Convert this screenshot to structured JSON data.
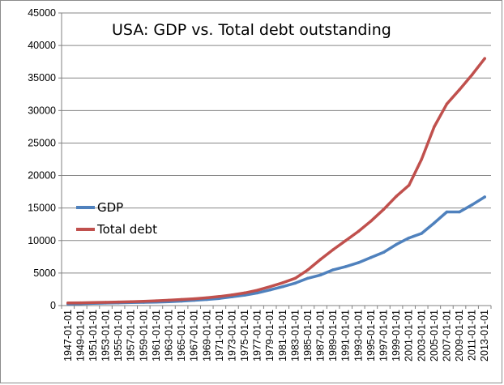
{
  "chart_data": {
    "type": "line",
    "title": "USA: GDP vs. Total debt outstanding",
    "xlabel": "",
    "ylabel": "",
    "ylim": [
      0,
      45000
    ],
    "yticks": [
      "0",
      "5000",
      "10000",
      "15000",
      "20000",
      "25000",
      "30000",
      "35000",
      "40000",
      "45000"
    ],
    "grid": "horizontal",
    "legend_position": "middle-left",
    "x": [
      "1947-01-01",
      "1949-01-01",
      "1951-01-01",
      "1953-01-01",
      "1955-01-01",
      "1957-01-01",
      "1959-01-01",
      "1961-01-01",
      "1963-01-01",
      "1965-01-01",
      "1967-01-01",
      "1969-01-01",
      "1971-01-01",
      "1973-01-01",
      "1975-01-01",
      "1977-01-01",
      "1979-01-01",
      "1981-01-01",
      "1983-01-01",
      "1985-01-01",
      "1987-01-01",
      "1989-01-01",
      "1991-01-01",
      "1993-01-01",
      "1995-01-01",
      "1997-01-01",
      "1999-01-01",
      "2001-01-01",
      "2003-01-01",
      "2005-01-01",
      "2007-01-01",
      "2009-01-01",
      "2011-01-01",
      "2013-01-01"
    ],
    "series": [
      {
        "name": "GDP",
        "color": "#4f81bd",
        "values": [
          243,
          272,
          340,
          385,
          420,
          465,
          500,
          535,
          600,
          690,
          810,
          930,
          1100,
          1350,
          1600,
          1950,
          2400,
          2900,
          3450,
          4200,
          4700,
          5500,
          6000,
          6600,
          7400,
          8200,
          9400,
          10400,
          11100,
          12700,
          14400,
          14400,
          15500,
          16700
        ]
      },
      {
        "name": "Total debt",
        "color": "#c0504d",
        "values": [
          400,
          420,
          470,
          500,
          550,
          600,
          660,
          730,
          820,
          930,
          1050,
          1200,
          1400,
          1650,
          1950,
          2350,
          2900,
          3500,
          4200,
          5500,
          7100,
          8600,
          10000,
          11400,
          13000,
          14800,
          16800,
          18500,
          22500,
          27500,
          31000,
          33200,
          35500,
          38000
        ]
      }
    ]
  }
}
